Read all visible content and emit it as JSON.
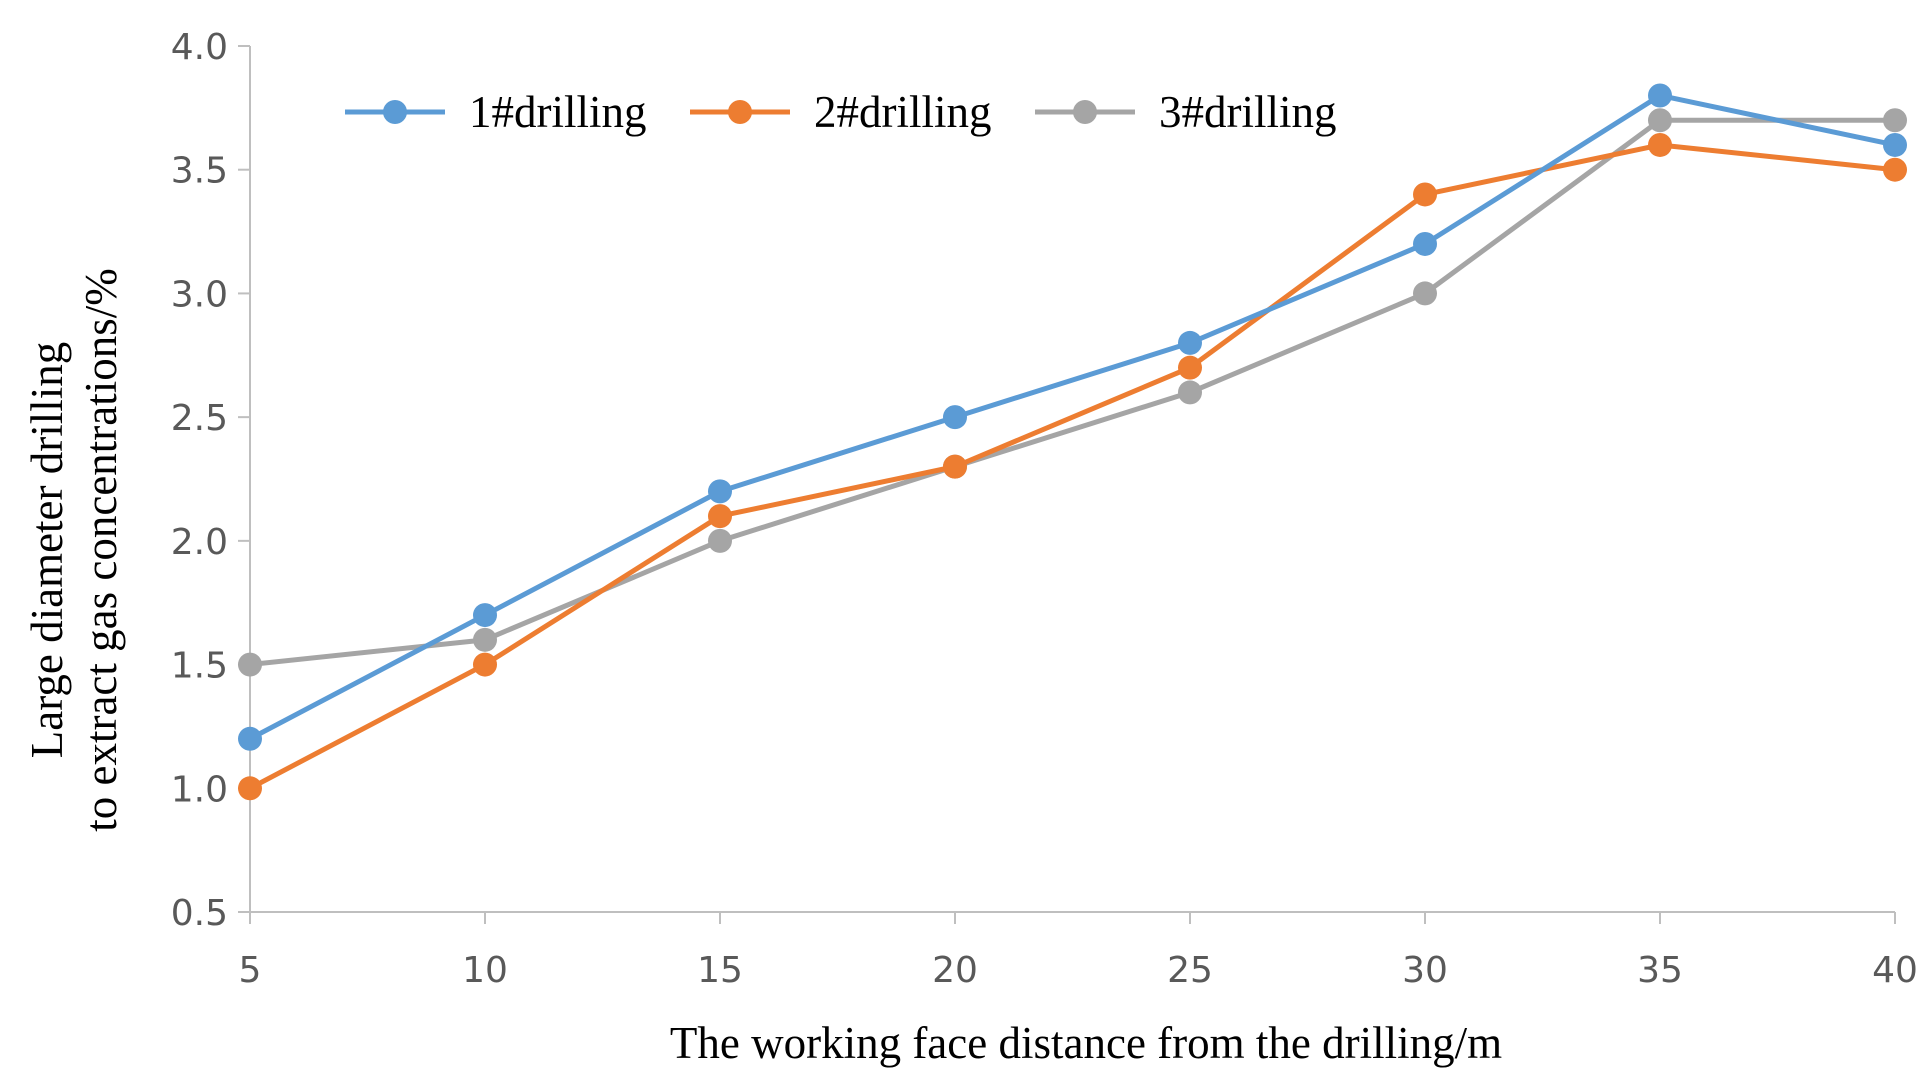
{
  "chart_data": {
    "type": "line",
    "title": "",
    "xlabel": "The working face distance from the drilling/m",
    "ylabel_lines": [
      "Large diameter drilling",
      "to extract gas concentrations/%"
    ],
    "x": [
      5,
      10,
      15,
      20,
      25,
      30,
      35,
      40
    ],
    "xlim": [
      5,
      40
    ],
    "ylim": [
      0.5,
      4.0
    ],
    "yticks": [
      "0.5",
      "1.0",
      "1.5",
      "2.0",
      "2.5",
      "3.0",
      "3.5",
      "4.0"
    ],
    "xticks": [
      "5",
      "10",
      "15",
      "20",
      "25",
      "30",
      "35",
      "40"
    ],
    "grid": false,
    "legend_position": "top-left",
    "series": [
      {
        "name": "1#drilling",
        "color": "#5B9BD5",
        "values": [
          1.2,
          1.7,
          2.2,
          2.5,
          2.8,
          3.2,
          3.8,
          3.6
        ]
      },
      {
        "name": "2#drilling",
        "color": "#ED7D31",
        "values": [
          1.0,
          1.5,
          2.1,
          2.3,
          2.7,
          3.4,
          3.6,
          3.5
        ]
      },
      {
        "name": "3#drilling",
        "color": "#A5A5A5",
        "values": [
          1.5,
          1.6,
          2.0,
          2.3,
          2.6,
          3.0,
          3.7,
          3.7
        ]
      }
    ]
  }
}
